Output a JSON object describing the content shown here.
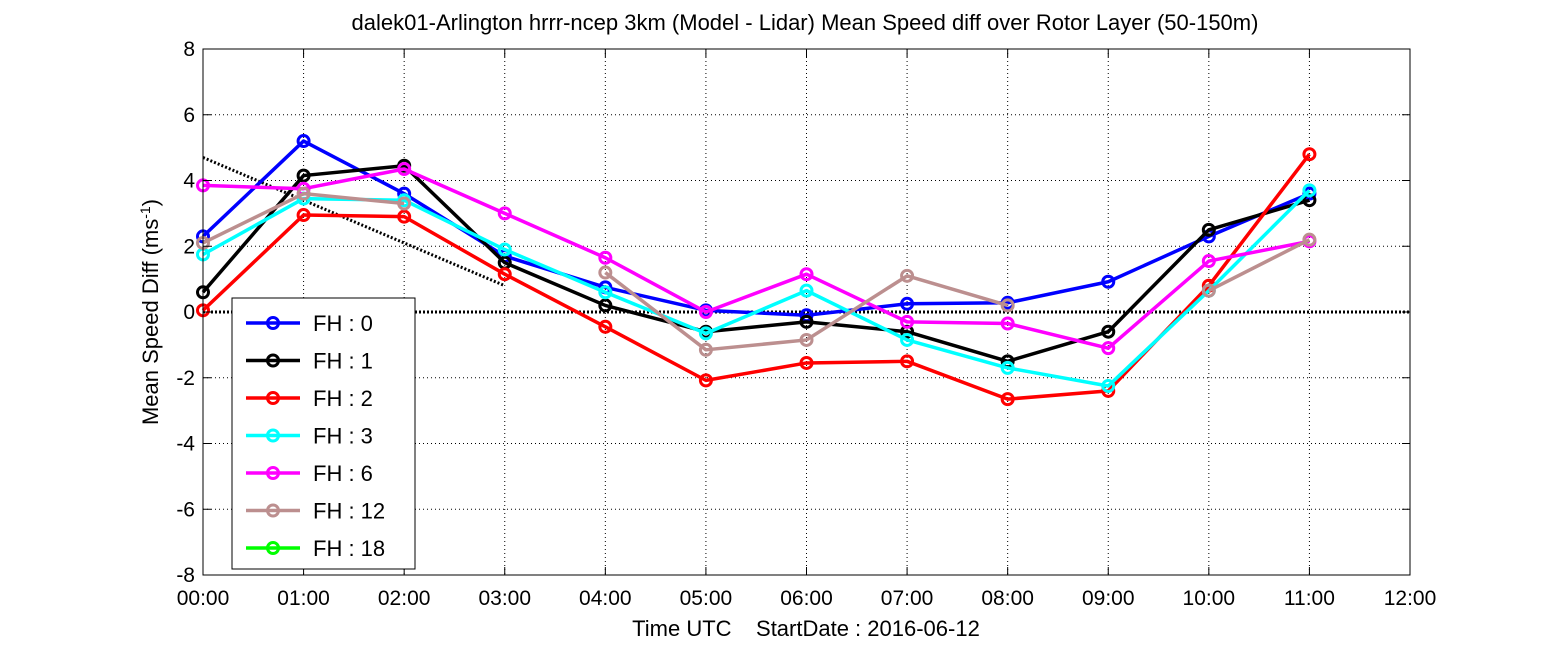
{
  "chart_data": {
    "type": "line",
    "title": "dalek01-Arlington hrrr-ncep 3km (Model - Lidar) Mean Speed diff over Rotor Layer (50-150m)",
    "xlabel": "Time UTC    StartDate : 2016-06-12",
    "ylabel_main": "Mean Speed Diff (ms",
    "ylabel_sup": "-1",
    "ylabel_end": ")",
    "x_ticks": [
      "00:00",
      "01:00",
      "02:00",
      "03:00",
      "04:00",
      "05:00",
      "06:00",
      "07:00",
      "08:00",
      "09:00",
      "10:00",
      "11:00",
      "12:00"
    ],
    "y_ticks": [
      8,
      6,
      4,
      2,
      0,
      -2,
      -4,
      -6,
      -8
    ],
    "xlim": [
      0,
      12
    ],
    "ylim": [
      -8,
      8
    ],
    "grid": true,
    "legend_position": "bottom-left",
    "series": [
      {
        "name": "FH : 0",
        "color": "#0000ff",
        "x": [
          0,
          1,
          2,
          3,
          4,
          5,
          6,
          7,
          8,
          9,
          10,
          11
        ],
        "values": [
          2.3,
          5.2,
          3.6,
          1.7,
          0.75,
          0.05,
          -0.1,
          0.25,
          0.28,
          0.92,
          2.3,
          3.6
        ]
      },
      {
        "name": "FH : 1",
        "color": "#000000",
        "x": [
          0,
          1,
          2,
          3,
          4,
          5,
          6,
          7,
          8,
          9,
          10,
          11
        ],
        "values": [
          0.6,
          4.15,
          4.45,
          1.5,
          0.2,
          -0.6,
          -0.3,
          -0.6,
          -1.5,
          -0.6,
          2.5,
          3.4
        ]
      },
      {
        "name": "FH : 2",
        "color": "#ff0000",
        "x": [
          0,
          1,
          2,
          3,
          4,
          5,
          6,
          7,
          8,
          9,
          10,
          11
        ],
        "values": [
          0.05,
          2.95,
          2.9,
          1.15,
          -0.45,
          -2.08,
          -1.55,
          -1.5,
          -2.65,
          -2.4,
          0.8,
          4.8
        ]
      },
      {
        "name": "FH : 3",
        "color": "#00ffff",
        "x": [
          0,
          1,
          2,
          3,
          4,
          5,
          6,
          7,
          8,
          9,
          10,
          11
        ],
        "values": [
          1.75,
          3.45,
          3.4,
          1.9,
          0.6,
          -0.65,
          0.65,
          -0.85,
          -1.7,
          -2.25,
          0.65,
          3.7
        ]
      },
      {
        "name": "FH : 6",
        "color": "#ff00ff",
        "x": [
          0,
          1,
          2,
          3,
          4,
          5,
          6,
          7,
          8,
          9,
          10,
          11
        ],
        "values": [
          3.85,
          3.75,
          4.35,
          3.0,
          1.65,
          0.0,
          1.15,
          -0.3,
          -0.35,
          -1.1,
          1.55,
          2.15
        ]
      },
      {
        "name": "FH : 12",
        "color": "#bc8f8f",
        "x": [
          0,
          1,
          2,
          3,
          4,
          5,
          6,
          7,
          8,
          9,
          10,
          11
        ],
        "values": [
          2.1,
          3.6,
          3.3,
          null,
          1.2,
          -1.15,
          -0.85,
          1.1,
          0.2,
          null,
          0.65,
          2.2
        ]
      },
      {
        "name": "FH : 18",
        "color": "#00ff00",
        "x": [],
        "values": []
      }
    ],
    "trend_line": {
      "color": "#000000",
      "x": [
        0,
        3
      ],
      "values": [
        4.7,
        0.8
      ]
    },
    "zero_line": {
      "color": "#000000",
      "value": 0
    }
  }
}
